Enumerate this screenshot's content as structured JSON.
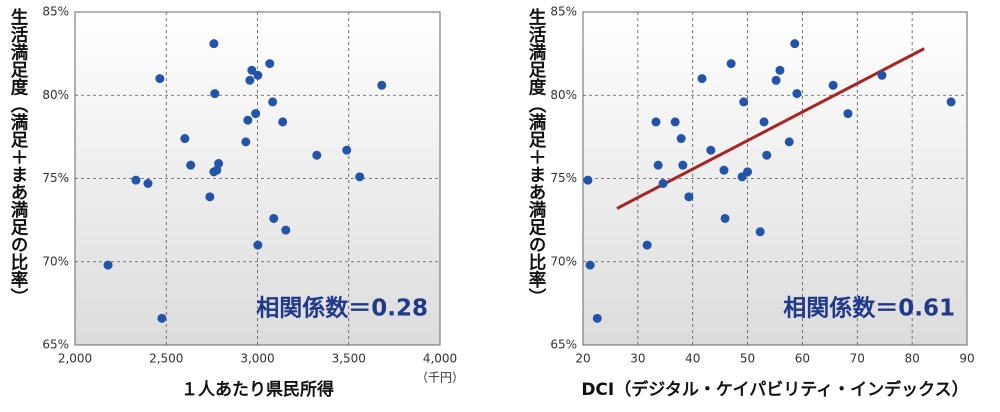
{
  "chart_data": [
    {
      "type": "scatter",
      "y_label": "生活満足度（満足＋まあ満足の比率）",
      "x_label": "１人あたり県民所得",
      "x_unit": "（千円）",
      "annotation": "相関係数＝0.28",
      "color": "#2255aa",
      "grid": true,
      "xlim": [
        2000,
        4000
      ],
      "xticks": [
        {
          "value": 2000,
          "label": "2,000"
        },
        {
          "value": 2500,
          "label": "2,500"
        },
        {
          "value": 3000,
          "label": "3,000"
        },
        {
          "value": 3500,
          "label": "3,500"
        },
        {
          "value": 4000,
          "label": "4,000"
        }
      ],
      "ylim": [
        65,
        85
      ],
      "yticks": [
        {
          "value": 65,
          "label": "65%"
        },
        {
          "value": 70,
          "label": "70%"
        },
        {
          "value": 75,
          "label": "75%"
        },
        {
          "value": 80,
          "label": "80%"
        },
        {
          "value": 85,
          "label": "85%"
        }
      ],
      "x": [
        2465,
        2761,
        2766,
        2958,
        2969,
        3002,
        3067,
        3681,
        3083,
        2990,
        2947,
        3138,
        2602,
        2936,
        3325,
        3489,
        2634,
        2787,
        2777,
        2761,
        3560,
        2334,
        2400,
        2739,
        3089,
        3155,
        3002,
        2181,
        2476
      ],
      "values": [
        81.0,
        83.1,
        80.1,
        80.9,
        81.5,
        81.2,
        81.9,
        80.6,
        79.6,
        78.9,
        78.5,
        78.4,
        77.4,
        77.2,
        76.4,
        76.7,
        75.8,
        75.9,
        75.5,
        75.4,
        75.1,
        74.9,
        74.7,
        73.9,
        72.6,
        71.9,
        71.0,
        69.8,
        66.6
      ]
    },
    {
      "type": "scatter",
      "y_label": "生活満足度（満足＋まあ満足の比率）",
      "x_label": "DCI（デジタル・ケイパビリティ・インデックス）",
      "annotation": "相関係数＝0.61",
      "color": "#2255aa",
      "grid": true,
      "xlim": [
        20,
        90
      ],
      "xticks": [
        20,
        30,
        40,
        50,
        60,
        70,
        80,
        90
      ],
      "ylim": [
        65,
        85
      ],
      "yticks": [
        {
          "value": 65,
          "label": "65%"
        },
        {
          "value": 70,
          "label": "70%"
        },
        {
          "value": 75,
          "label": "75%"
        },
        {
          "value": 80,
          "label": "80%"
        },
        {
          "value": 85,
          "label": "85%"
        }
      ],
      "x": [
        20.9,
        21.3,
        22.6,
        31.7,
        33.3,
        33.7,
        34.6,
        36.8,
        37.9,
        38.2,
        39.3,
        41.7,
        43.3,
        45.7,
        45.9,
        47.0,
        49.0,
        49.3,
        50.0,
        52.3,
        53.0,
        53.5,
        55.2,
        55.9,
        57.6,
        58.6,
        59.0,
        65.6,
        68.3,
        74.5,
        87.1
      ],
      "values": [
        74.9,
        69.8,
        66.6,
        71.0,
        78.4,
        75.8,
        74.7,
        78.4,
        77.4,
        75.8,
        73.9,
        81.0,
        76.7,
        75.5,
        72.6,
        81.9,
        75.1,
        79.6,
        75.4,
        71.8,
        78.4,
        76.4,
        80.9,
        81.5,
        77.2,
        83.1,
        80.1,
        80.6,
        78.9,
        81.2,
        79.6
      ],
      "trendline": {
        "color": "#aa2222",
        "x": [
          26.2,
          82.2
        ],
        "values": [
          73.2,
          82.8
        ]
      }
    }
  ]
}
